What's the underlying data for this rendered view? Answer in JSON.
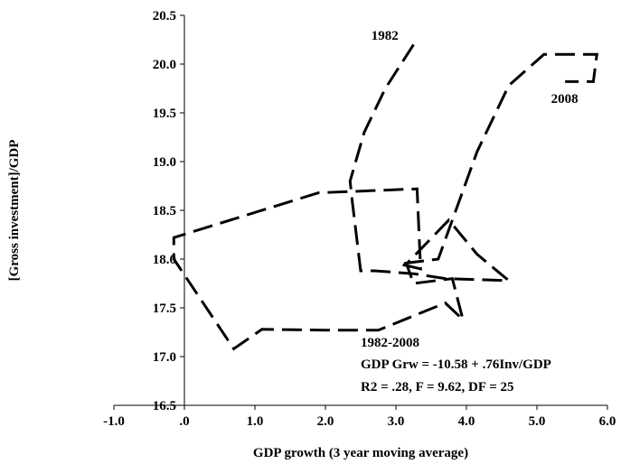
{
  "chart_data": {
    "type": "line",
    "title": "",
    "xlabel": "GDP growth (3 year moving average)",
    "ylabel": "[Gross investment]/GDP",
    "xlim": [
      -1.0,
      6.0
    ],
    "ylim": [
      16.5,
      20.5
    ],
    "x_ticks": [
      -1.0,
      0.0,
      1.0,
      2.0,
      3.0,
      4.0,
      5.0,
      6.0
    ],
    "x_tick_labels": [
      "-1.0",
      ".0",
      "1.0",
      "2.0",
      "3.0",
      "4.0",
      "5.0",
      "6.0"
    ],
    "y_ticks": [
      16.5,
      17.0,
      17.5,
      18.0,
      18.5,
      19.0,
      19.5,
      20.0,
      20.5
    ],
    "y_tick_labels": [
      "16.5",
      "17.0",
      "17.5",
      "18.0",
      "18.5",
      "19.0",
      "19.5",
      "20.0",
      "20.5"
    ],
    "grid": false,
    "series": [
      {
        "x": [
          3.25,
          2.85,
          2.55,
          2.35,
          2.38,
          2.5,
          2.7,
          3.25,
          3.7,
          4.6,
          4.15,
          3.75,
          3.15,
          3.25,
          3.8,
          3.95,
          3.7,
          2.75,
          2.0,
          1.1,
          0.7,
          -0.15,
          -0.15,
          1.9,
          3.3,
          3.35,
          3.05,
          3.6,
          4.15,
          4.6,
          5.1,
          5.85,
          5.8,
          5.4
        ],
        "y": [
          20.2,
          19.75,
          19.3,
          18.8,
          18.6,
          17.88,
          17.88,
          17.85,
          17.8,
          17.78,
          18.05,
          18.4,
          17.95,
          17.75,
          17.8,
          17.38,
          17.55,
          17.27,
          17.27,
          17.28,
          17.08,
          18.0,
          18.22,
          18.68,
          18.72,
          17.9,
          17.95,
          18.0,
          19.1,
          19.78,
          20.1,
          20.1,
          19.82,
          19.82
        ]
      }
    ],
    "annotations": [
      {
        "text": "1982",
        "x": 2.65,
        "y": 20.25
      },
      {
        "text": "2008",
        "x": 5.2,
        "y": 19.6
      },
      {
        "text": "1982-2008",
        "x": 2.5,
        "y": 17.1
      },
      {
        "text": "GDP Grw = -10.58 + .76Inv/GDP",
        "x": 2.5,
        "y": 16.88
      },
      {
        "text": "R2 = .28, F = 9.62, DF = 25",
        "x": 2.5,
        "y": 16.65
      }
    ]
  }
}
